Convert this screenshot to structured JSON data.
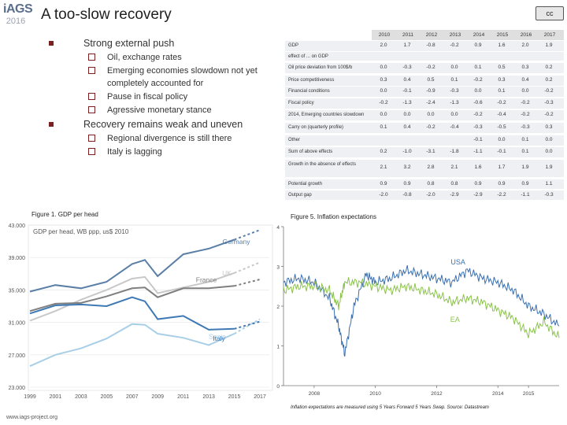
{
  "logo": {
    "name": "iAGS",
    "year": "2016"
  },
  "title": "A too-slow recovery",
  "license_badge": "cc",
  "bullets": [
    {
      "text": "Strong external push",
      "sub": [
        "Oil, exchange rates",
        "Emerging economies slowdown not yet completely accounted for",
        "Pause in fiscal policy",
        "Agressive monetary stance"
      ]
    },
    {
      "text": "Recovery remains weak and uneven",
      "sub": [
        "Regional divergence is still there",
        "Italy is lagging"
      ]
    }
  ],
  "table": {
    "years": [
      "2010",
      "2011",
      "2012",
      "2013",
      "2014",
      "2015",
      "2016",
      "2017"
    ],
    "rows": [
      {
        "label": "GDP",
        "values": [
          "2.0",
          "1.7",
          "-0.8",
          "-0.2",
          "0.9",
          "1.6",
          "2.0",
          "1.9"
        ]
      },
      {
        "label": "effect of ... on GDP",
        "values": [
          "",
          "",
          "",
          "",
          "",
          "",
          "",
          ""
        ]
      },
      {
        "label": "Oil price deviation from 100$/b",
        "values": [
          "0.0",
          "-0.3",
          "-0.2",
          "0.0",
          "0.1",
          "0.5",
          "0.3",
          "0.2"
        ]
      },
      {
        "label": "Price competitiveness",
        "values": [
          "0.3",
          "0.4",
          "0.5",
          "0.1",
          "-0.2",
          "0.3",
          "0.4",
          "0.2"
        ]
      },
      {
        "label": "Financial conditions",
        "values": [
          "0.0",
          "-0.1",
          "-0.9",
          "-0.3",
          "0.0",
          "0.1",
          "0.0",
          "-0.2"
        ]
      },
      {
        "label": "Fiscal policy",
        "values": [
          "-0.2",
          "-1.3",
          "-2.4",
          "-1.3",
          "-0.6",
          "-0.2",
          "-0.2",
          "-0.3"
        ]
      },
      {
        "label": "2014, Emerging countries slowdown",
        "values": [
          "0.0",
          "0.0",
          "0.0",
          "0.0",
          "-0.2",
          "-0.4",
          "-0.2",
          "-0.2"
        ]
      },
      {
        "label": "Carry on (quarterly profile)",
        "values": [
          "0.1",
          "0.4",
          "-0.2",
          "-0.4",
          "-0.3",
          "-0.5",
          "-0.3",
          "0.3"
        ]
      },
      {
        "label": "Other",
        "values": [
          "",
          "",
          "",
          "",
          "-0.1",
          "0.0",
          "0.1",
          "0.0"
        ]
      },
      {
        "label": "Sum of above effects",
        "values": [
          "0.2",
          "-1.0",
          "-3.1",
          "-1.8",
          "-1.1",
          "-0.1",
          "0.1",
          "0.0"
        ]
      },
      {
        "label": "Growth in the absence of effects",
        "values": [
          "2.1",
          "3.2",
          "2.8",
          "2.1",
          "1.6",
          "1.7",
          "1.9",
          "1.9"
        ]
      },
      {
        "label": "Potential growth",
        "values": [
          "0.9",
          "0.9",
          "0.8",
          "0.8",
          "0.9",
          "0.9",
          "0.9",
          "1.1"
        ]
      },
      {
        "label": "Output gap",
        "values": [
          "-2.0",
          "-0.8",
          "-2.0",
          "-2.9",
          "-2.9",
          "-2.2",
          "-1.1",
          "-0.3"
        ]
      }
    ]
  },
  "figure1": {
    "caption": "Figure 1. GDP per head",
    "inner_title": "GDP per head, WB ppp, us$ 2010"
  },
  "figure5": {
    "caption": "Figure 5. Inflation expectations",
    "note": "Inflation expectations are measured using 5 Years Forward 5 Years Swap. Source: Datastream"
  },
  "footer": "www.iags-project.org",
  "chart_data": [
    {
      "type": "line",
      "title": "GDP per head, WB ppp, us$ 2010",
      "xlabel": "",
      "ylabel": "",
      "x": [
        1999,
        2001,
        2003,
        2005,
        2007,
        2008,
        2009,
        2011,
        2013,
        2015,
        2017
      ],
      "xticks": [
        "1999",
        "2001",
        "2003",
        "2005",
        "2007",
        "2009",
        "2011",
        "2013",
        "2015",
        "2017"
      ],
      "yticks": [
        "23.000",
        "27.000",
        "31.000",
        "35.000",
        "39.000",
        "43.000"
      ],
      "ylim": [
        23000,
        43000
      ],
      "series": [
        {
          "name": "Germany",
          "color": "#5b7fa6",
          "values": [
            34800,
            35600,
            35200,
            36000,
            38200,
            38700,
            36700,
            39400,
            40100,
            41200,
            42400
          ]
        },
        {
          "name": "UK",
          "color": "#c8c8c8",
          "values": [
            31200,
            32400,
            33800,
            35000,
            36400,
            36600,
            34600,
            35300,
            36000,
            37100,
            38400
          ]
        },
        {
          "name": "France",
          "color": "#7f7f7f",
          "values": [
            32400,
            33300,
            33400,
            34200,
            35200,
            35300,
            34100,
            35200,
            35200,
            35500,
            36300
          ]
        },
        {
          "name": "Spain",
          "color": "#a9cfe6",
          "values": [
            25600,
            27000,
            27800,
            29000,
            30800,
            30700,
            29600,
            29100,
            28200,
            29600,
            31400
          ]
        },
        {
          "name": "Italy",
          "color": "#3f79b4",
          "values": [
            32100,
            33100,
            33200,
            33000,
            34100,
            33600,
            31400,
            31800,
            30100,
            30200,
            31100
          ]
        }
      ]
    },
    {
      "type": "line",
      "title": "Figure 5. Inflation expectations",
      "xlabel": "",
      "ylabel": "",
      "xticks": [
        "2008",
        "2010",
        "2012",
        "2014",
        "2015"
      ],
      "yticks": [
        "0",
        "1",
        "2",
        "3",
        "4"
      ],
      "ylim": [
        0,
        4
      ],
      "series": [
        {
          "name": "USA",
          "color": "#3a6fb0",
          "x": [
            2007.0,
            2007.5,
            2008.0,
            2008.5,
            2008.8,
            2009.0,
            2009.3,
            2009.7,
            2010.0,
            2010.5,
            2011.0,
            2011.5,
            2012.0,
            2012.5,
            2013.0,
            2013.5,
            2014.0,
            2014.5,
            2015.0,
            2015.5,
            2016.0
          ],
          "values": [
            2.6,
            2.7,
            2.6,
            2.2,
            1.5,
            0.8,
            2.0,
            2.8,
            2.6,
            2.7,
            2.9,
            2.8,
            2.7,
            2.6,
            2.9,
            2.7,
            2.6,
            2.4,
            2.0,
            1.8,
            1.5
          ]
        },
        {
          "name": "EA",
          "color": "#8bc34a",
          "x": [
            2007.0,
            2007.5,
            2008.0,
            2008.5,
            2008.8,
            2009.0,
            2009.5,
            2010.0,
            2010.5,
            2011.0,
            2011.5,
            2012.0,
            2012.5,
            2013.0,
            2013.5,
            2014.0,
            2014.5,
            2015.0,
            2015.5,
            2016.0
          ],
          "values": [
            2.4,
            2.5,
            2.5,
            2.4,
            2.0,
            2.6,
            2.6,
            2.5,
            2.4,
            2.5,
            2.4,
            2.3,
            2.1,
            2.2,
            2.1,
            1.9,
            1.7,
            1.3,
            1.6,
            1.2
          ]
        }
      ]
    }
  ]
}
